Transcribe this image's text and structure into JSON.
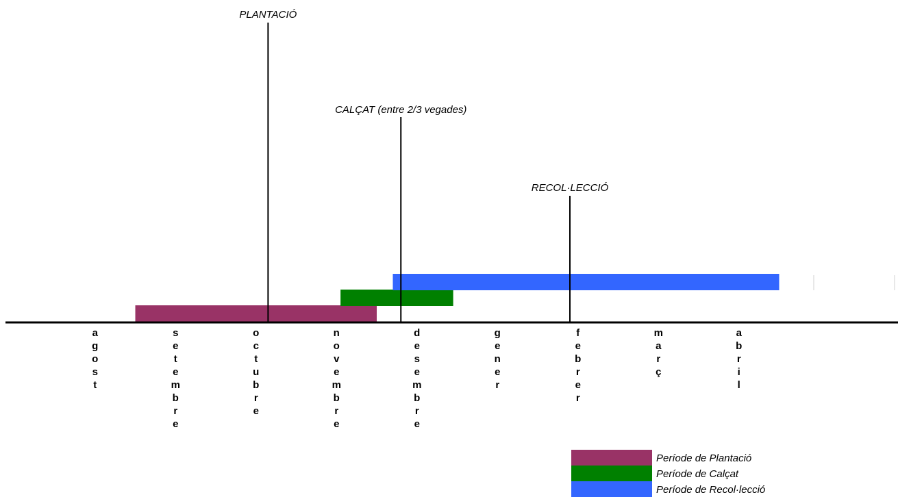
{
  "chart_data": {
    "type": "timeline",
    "months": [
      "agost",
      "setembre",
      "octubre",
      "novembre",
      "desembre",
      "gener",
      "febrer",
      "març",
      "abril"
    ],
    "periods": [
      {
        "name": "Període de Plantació",
        "color": "#993366",
        "start": 1.0,
        "end": 4.0
      },
      {
        "name": "Període de Calçat",
        "color": "#008000",
        "start": 3.55,
        "end": 4.95
      },
      {
        "name": "Període de Recol·lecció",
        "color": "#3366FF",
        "start": 4.2,
        "end": 9.0
      }
    ],
    "events": [
      {
        "label": "PLANTACIÓ",
        "at": 2.65
      },
      {
        "label": "CALÇAT (entre 2/3 vegades)",
        "at": 4.3
      },
      {
        "label": "RECOL·LECCIÓ",
        "at": 6.4
      }
    ],
    "legend": {
      "position": "bottom-right",
      "entries": [
        "Període de Plantació",
        "Període de Calçat",
        "Període de Recol·lecció"
      ]
    }
  }
}
